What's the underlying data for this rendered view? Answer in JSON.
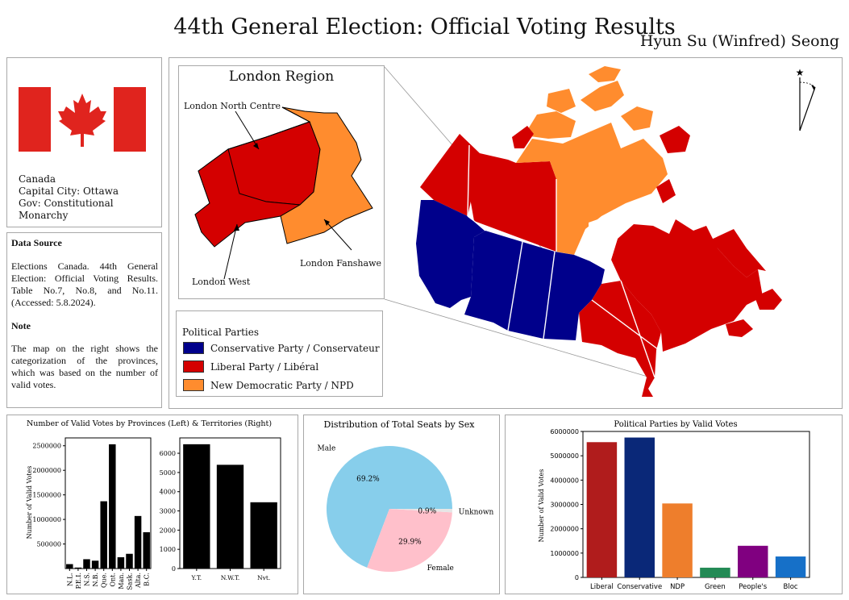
{
  "header": {
    "title": "44th General Election: Official Voting Results",
    "author": "Hyun Su (Winfred) Seong"
  },
  "country": {
    "name": "Canada",
    "capital": "Capital City: Ottawa",
    "government": "Gov: Constitutional Monarchy",
    "flag_icon": "canada-flag-icon"
  },
  "info": {
    "source_heading": "Data Source",
    "source_text": "Elections Canada. 44th General Election: Official Voting Results. Table No.7, No.8, and No.11. (Accessed: 5.8.2024).",
    "note_heading": "Note",
    "note_text": "The map on the right shows the categorization of the provinces, which was based on the number of valid votes."
  },
  "map": {
    "inset_title": "London Region",
    "ridings": [
      "London North Centre",
      "London West",
      "London Fanshawe"
    ],
    "north_arrow_icon": "north-arrow-icon",
    "colors": {
      "conservative": "#00008b",
      "liberal": "#d40000",
      "ndp": "#ff8c2e"
    }
  },
  "legend": {
    "title": "Political Parties",
    "items": [
      {
        "label": "Conservative Party / Conservateur",
        "color": "#00008b"
      },
      {
        "label": "Liberal Party / Libéral",
        "color": "#d40000"
      },
      {
        "label": "New Democratic Party / NPD",
        "color": "#ff8c2e"
      }
    ]
  },
  "chart_data": [
    {
      "type": "bar",
      "title": "Number of Valid Votes by Provinces (Left) & Territories (Right)",
      "ylabel": "Number of Valid Votes",
      "categories": [
        "N.L.",
        "P.E.I.",
        "N.S.",
        "N.B.",
        "Que.",
        "Ont.",
        "Man.",
        "Sask.",
        "Alta.",
        "B.C."
      ],
      "values": [
        90000,
        20000,
        190000,
        160000,
        1370000,
        2530000,
        230000,
        300000,
        1070000,
        740000
      ],
      "yticks": [
        500000,
        1000000,
        1500000,
        2000000,
        2500000
      ],
      "ylim": [
        0,
        2660000
      ],
      "color": "#000000"
    },
    {
      "type": "bar",
      "categories": [
        "Y.T.",
        "N.W.T.",
        "Nvt."
      ],
      "values": [
        6470,
        5400,
        3450
      ],
      "yticks": [
        0,
        1000,
        2000,
        3000,
        4000,
        5000,
        6000
      ],
      "ylim": [
        0,
        6800
      ],
      "color": "#000000"
    },
    {
      "type": "pie",
      "title": "Distribution of Total Seats by Sex",
      "slices": [
        {
          "label": "Male",
          "value": 69.2,
          "pct_text": "69.2%",
          "color": "#87ceeb"
        },
        {
          "label": "Female",
          "value": 29.9,
          "pct_text": "29.9%",
          "color": "#ffc0cb"
        },
        {
          "label": "Unknown",
          "value": 0.9,
          "pct_text": "0.9%",
          "color": "#e6e6e6"
        }
      ]
    },
    {
      "type": "bar",
      "title": "Political Parties by Valid Votes",
      "ylabel": "Number of Valid Votes",
      "categories": [
        "Liberal",
        "Conservative",
        "NDP",
        "Green",
        "People's",
        "Bloc"
      ],
      "values": [
        5560000,
        5750000,
        3040000,
        400000,
        1300000,
        860000
      ],
      "colors": [
        "#b01c1c",
        "#0a2878",
        "#ee7e2c",
        "#238a55",
        "#800080",
        "#1670c8"
      ],
      "yticks": [
        0,
        1000000,
        2000000,
        3000000,
        4000000,
        5000000,
        6000000
      ],
      "ylim": [
        0,
        6000000
      ]
    }
  ]
}
